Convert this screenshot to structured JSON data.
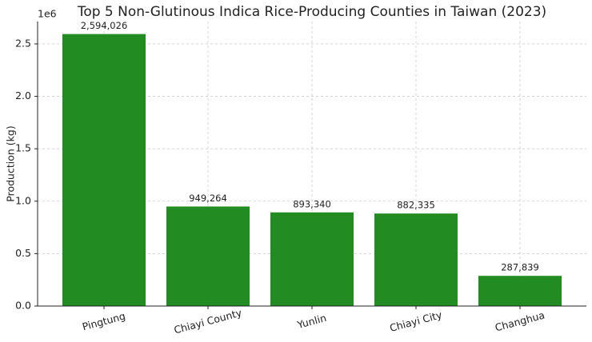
{
  "chart_data": {
    "type": "bar",
    "title": "Top 5 Non-Glutinous Indica Rice-Producing Counties in Taiwan (2023)",
    "y_label": "Production (kg)",
    "y_offset_label": "1e6",
    "categories": [
      "Pingtung",
      "Chiayi County",
      "Yunlin",
      "Chiayi City",
      "Changhua"
    ],
    "values": [
      2594026,
      949264,
      893340,
      882335,
      287839
    ],
    "value_labels": [
      "2,594,026",
      "949,264",
      "893,340",
      "882,335",
      "287,839"
    ],
    "color": "#228b22",
    "ylim": [
      0,
      2713000
    ],
    "yticks": [
      {
        "value": 0,
        "label": "0.0"
      },
      {
        "value": 500000,
        "label": "0.5"
      },
      {
        "value": 1000000,
        "label": "1.0"
      },
      {
        "value": 1500000,
        "label": "1.5"
      },
      {
        "value": 2000000,
        "label": "2.0"
      },
      {
        "value": 2500000,
        "label": "2.5"
      }
    ],
    "grid": true
  }
}
